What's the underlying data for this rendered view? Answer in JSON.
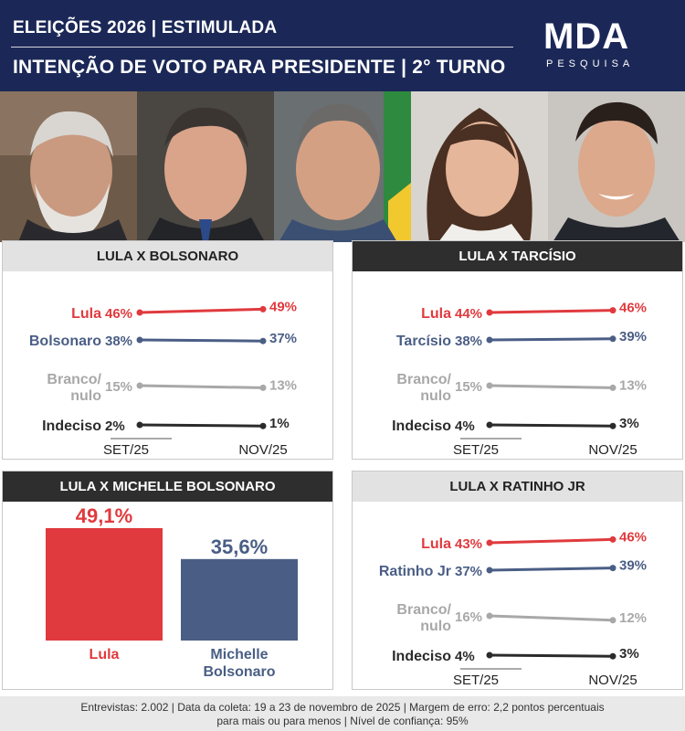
{
  "header": {
    "line1": "ELEIÇÕES 2026 | ESTIMULADA",
    "line2": "INTENÇÃO DE VOTO PARA PRESIDENTE | 2° TURNO",
    "logo_text": "MDA",
    "logo_sub": "PESQUISA"
  },
  "colors": {
    "lula": "#e03a3e",
    "opponent": "#4a5e85",
    "branco": "#a8a8a8",
    "indeciso": "#2b2b2b",
    "header_bg": "#1b2857"
  },
  "chart_data": [
    {
      "type": "line",
      "title": "LULA X BOLSONARO",
      "categories": [
        "SET/25",
        "NOV/25"
      ],
      "series": [
        {
          "name": "Lula",
          "values": [
            46,
            49
          ],
          "labels": [
            "46%",
            "49%"
          ],
          "color_key": "lula"
        },
        {
          "name": "Bolsonaro",
          "values": [
            38,
            37
          ],
          "labels": [
            "38%",
            "37%"
          ],
          "color_key": "opponent"
        },
        {
          "name": "Branco/ nulo",
          "name_lines": [
            "Branco/",
            "nulo"
          ],
          "values": [
            15,
            13
          ],
          "labels": [
            "15%",
            "13%"
          ],
          "color_key": "branco"
        },
        {
          "name": "Indeciso",
          "values": [
            2,
            1
          ],
          "labels": [
            "2%",
            "1%"
          ],
          "color_key": "indeciso"
        }
      ]
    },
    {
      "type": "line",
      "title": "LULA X TARCÍSIO",
      "categories": [
        "SET/25",
        "NOV/25"
      ],
      "series": [
        {
          "name": "Lula",
          "values": [
            44,
            46
          ],
          "labels": [
            "44%",
            "46%"
          ],
          "color_key": "lula"
        },
        {
          "name": "Tarcísio",
          "values": [
            38,
            39
          ],
          "labels": [
            "38%",
            "39%"
          ],
          "color_key": "opponent"
        },
        {
          "name": "Branco/ nulo",
          "name_lines": [
            "Branco/",
            "nulo"
          ],
          "values": [
            15,
            13
          ],
          "labels": [
            "15%",
            "13%"
          ],
          "color_key": "branco"
        },
        {
          "name": "Indeciso",
          "values": [
            4,
            3
          ],
          "labels": [
            "4%",
            "3%"
          ],
          "color_key": "indeciso"
        }
      ]
    },
    {
      "type": "bar",
      "title": "LULA X MICHELLE BOLSONARO",
      "categories": [
        "Lula",
        "Michelle Bolsonaro"
      ],
      "category_lines": [
        [
          "Lula"
        ],
        [
          "Michelle",
          "Bolsonaro"
        ]
      ],
      "values": [
        49.1,
        35.6
      ],
      "labels": [
        "49,1%",
        "35,6%"
      ],
      "color_keys": [
        "lula",
        "opponent"
      ],
      "ylim": [
        0,
        49.1
      ]
    },
    {
      "type": "line",
      "title": "LULA X RATINHO JR",
      "categories": [
        "SET/25",
        "NOV/25"
      ],
      "series": [
        {
          "name": "Lula",
          "values": [
            43,
            46
          ],
          "labels": [
            "43%",
            "46%"
          ],
          "color_key": "lula"
        },
        {
          "name": "Ratinho Jr",
          "values": [
            37,
            39
          ],
          "labels": [
            "37%",
            "39%"
          ],
          "color_key": "opponent"
        },
        {
          "name": "Branco/ nulo",
          "name_lines": [
            "Branco/",
            "nulo"
          ],
          "values": [
            16,
            12
          ],
          "labels": [
            "16%",
            "12%"
          ],
          "color_key": "branco"
        },
        {
          "name": "Indeciso",
          "values": [
            4,
            3
          ],
          "labels": [
            "4%",
            "3%"
          ],
          "color_key": "indeciso"
        }
      ]
    }
  ],
  "footer": {
    "line1": "Entrevistas: 2.002  | Data da coleta: 19 a 23 de novembro de 2025 | Margem de erro: 2,2 pontos percentuais",
    "line2": "para mais ou para menos | Nível de confiança: 95%"
  }
}
